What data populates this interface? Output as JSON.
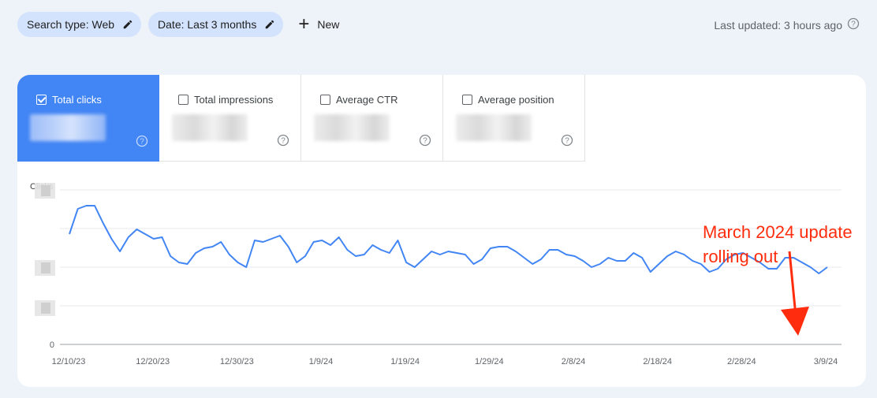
{
  "filters": {
    "chips": [
      {
        "label": "Search type: Web"
      },
      {
        "label": "Date: Last 3 months"
      }
    ],
    "new_label": "New",
    "last_updated": "Last updated: 3 hours ago"
  },
  "metrics": [
    {
      "label": "Total clicks",
      "checked": true
    },
    {
      "label": "Total impressions",
      "checked": false
    },
    {
      "label": "Average CTR",
      "checked": false
    },
    {
      "label": "Average position",
      "checked": false
    }
  ],
  "annotation": "March 2024 update\nrolling out",
  "colors": {
    "accent": "#4285f4",
    "chip": "#d3e3fd",
    "annotation": "#ff2d0d"
  },
  "chart_data": {
    "type": "line",
    "ylabel": "Clicks",
    "y_tick_labels": [
      "0"
    ],
    "x_tick_labels": [
      "12/10/23",
      "12/20/23",
      "12/30/23",
      "1/9/24",
      "1/19/24",
      "1/29/24",
      "2/8/24",
      "2/18/24",
      "2/28/24",
      "3/9/24"
    ],
    "grid": true,
    "series": [
      {
        "color": "#4285f4",
        "values": [
          0.7,
          0.86,
          0.88,
          0.88,
          0.77,
          0.67,
          0.59,
          0.68,
          0.73,
          0.7,
          0.67,
          0.68,
          0.56,
          0.52,
          0.51,
          0.58,
          0.61,
          0.62,
          0.65,
          0.57,
          0.52,
          0.49,
          0.66,
          0.65,
          0.67,
          0.69,
          0.62,
          0.52,
          0.56,
          0.65,
          0.66,
          0.63,
          0.68,
          0.6,
          0.56,
          0.57,
          0.63,
          0.6,
          0.58,
          0.66,
          0.52,
          0.49,
          0.54,
          0.59,
          0.57,
          0.59,
          0.58,
          0.57,
          0.51,
          0.54,
          0.61,
          0.62,
          0.62,
          0.59,
          0.55,
          0.51,
          0.54,
          0.6,
          0.6,
          0.57,
          0.56,
          0.53,
          0.49,
          0.51,
          0.55,
          0.53,
          0.53,
          0.58,
          0.55,
          0.46,
          0.51,
          0.56,
          0.59,
          0.57,
          0.53,
          0.51,
          0.46,
          0.48,
          0.54,
          0.57,
          0.58,
          0.55,
          0.52,
          0.48,
          0.48,
          0.55,
          0.55,
          0.52,
          0.49,
          0.45,
          0.49
        ]
      }
    ]
  }
}
